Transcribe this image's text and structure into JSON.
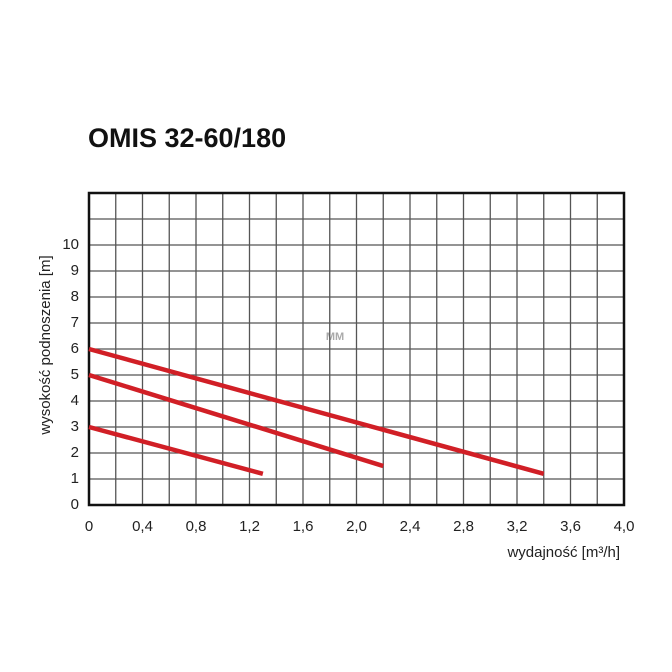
{
  "chart_data": {
    "type": "line",
    "title": "OMIS 32-60/180",
    "watermark": "MM",
    "x_label": "wydajność [m³/h]",
    "y_label": "wysokość podnoszenia [m]",
    "xlim": [
      0,
      4.0
    ],
    "ylim": [
      0,
      12
    ],
    "xticks": [
      0,
      {
        "value": 0.4,
        "label": "0,4"
      },
      {
        "value": 0.8,
        "label": "0,8"
      },
      {
        "value": 1.2,
        "label": "1,2"
      },
      {
        "value": 1.6,
        "label": "1,6"
      },
      {
        "value": 2.0,
        "label": "2,0"
      },
      {
        "value": 2.4,
        "label": "2,4"
      },
      {
        "value": 2.8,
        "label": "2,8"
      },
      {
        "value": 3.2,
        "label": "3,2"
      },
      {
        "value": 3.6,
        "label": "3,6"
      },
      {
        "value": 4.0,
        "label": "4,0"
      }
    ],
    "yticks": [
      0,
      1,
      2,
      3,
      4,
      5,
      6,
      7,
      8,
      9,
      10
    ],
    "grid": true,
    "series": [
      {
        "color": "#d11f26",
        "x": [
          0,
          1.3
        ],
        "values": [
          3.0,
          1.2
        ]
      },
      {
        "color": "#d11f26",
        "x": [
          0,
          2.2
        ],
        "values": [
          5.0,
          1.5
        ]
      },
      {
        "color": "#d11f26",
        "x": [
          0,
          3.4
        ],
        "values": [
          6.0,
          1.2
        ]
      }
    ]
  }
}
